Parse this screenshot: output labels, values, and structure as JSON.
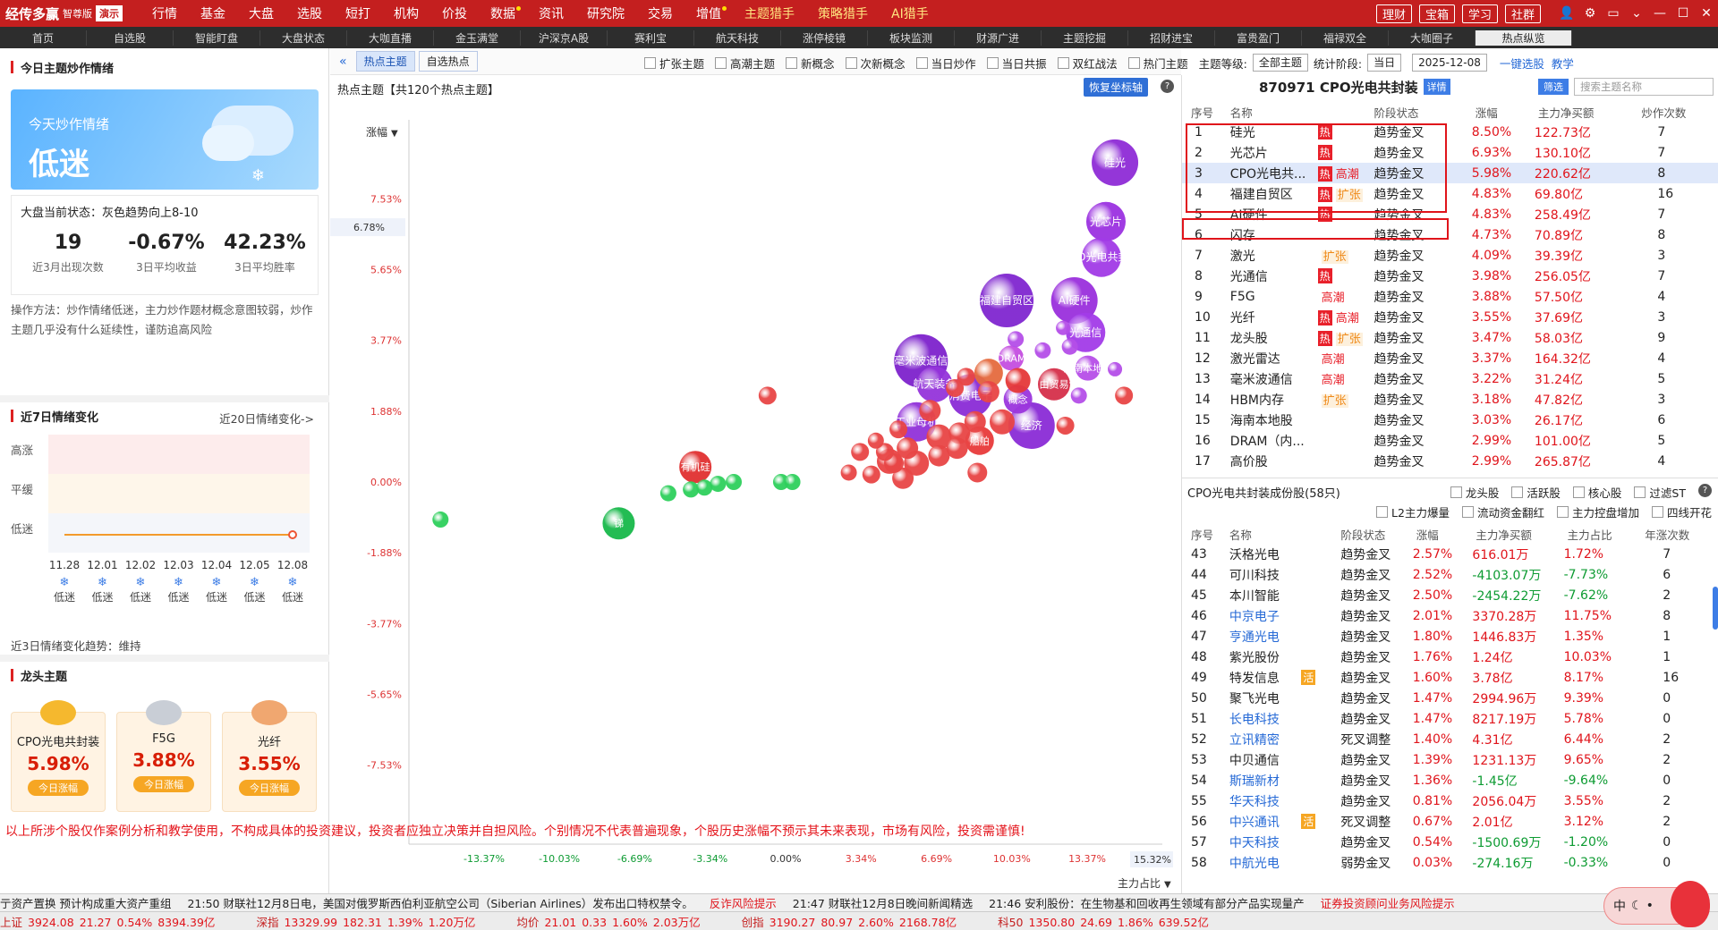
{
  "app": {
    "name": "经传多赢",
    "edition": "智尊版",
    "demo": "演示"
  },
  "menu": [
    "行情",
    "基金",
    "大盘",
    "选股",
    "短打",
    "机构",
    "价投",
    "数据",
    "资讯",
    "研究院",
    "交易",
    "增值",
    "主题猎手",
    "策略猎手",
    "AI猎手"
  ],
  "menu_dots": [
    "数据",
    "增值"
  ],
  "menu_highlight": [
    "主题猎手",
    "策略猎手",
    "AI猎手"
  ],
  "top_right": [
    "理财",
    "宝箱",
    "学习",
    "社群"
  ],
  "tabs": [
    "首页",
    "自选股",
    "智能盯盘",
    "大盘状态",
    "大咖直播",
    "金玉满堂",
    "沪深京A股",
    "赛利宝",
    "航天科技",
    "涨停棱镜",
    "板块监测",
    "财源广进",
    "主题挖掘",
    "招财进宝",
    "富贵盈门",
    "福禄双全",
    "大咖圈子",
    "热点纵览"
  ],
  "active_tab": "热点纵览",
  "left": {
    "mood_title": "今日主题炒作情绪",
    "card_line1": "今天炒作情绪",
    "card_line2": "低迷",
    "state": "大盘当前状态：灰色趋势向上8-10",
    "stats": [
      {
        "value": "19",
        "label": "近3月出现次数"
      },
      {
        "value": "-0.67%",
        "label": "3日平均收益"
      },
      {
        "value": "42.23%",
        "label": "3日平均胜率"
      }
    ],
    "op_text": "操作方法：炒作情绪低迷，主力炒作题材概念意图较弱，炒作主题几乎没有什么延续性，谨防追高风险",
    "week_title": "近7日情绪变化",
    "week_link": "近20日情绪变化->",
    "week_levels": [
      "高涨",
      "平缓",
      "低迷"
    ],
    "week_dates": [
      "11.28",
      "12.01",
      "12.02",
      "12.03",
      "12.04",
      "12.05",
      "12.08"
    ],
    "week_moods": [
      "低迷",
      "低迷",
      "低迷",
      "低迷",
      "低迷",
      "低迷",
      "低迷"
    ],
    "trend3": "近3日情绪变化趋势：维持",
    "lead_title": "龙头主题",
    "leaders": [
      {
        "name": "CPO光电共封装",
        "pct": "5.98%",
        "tag": "今日涨幅",
        "medal": "#f5b82e"
      },
      {
        "name": "F5G",
        "pct": "3.88%",
        "tag": "今日涨幅",
        "medal": "#c9ced6"
      },
      {
        "name": "光纤",
        "pct": "3.55%",
        "tag": "今日涨幅",
        "medal": "#f0a770"
      }
    ]
  },
  "disclaimer": "以上所涉个股仅作案例分析和教学使用，不构成具体的投资建议，投资者应独立决策并自担风险。个别情况不代表普遍现象，个股历史涨幅不预示其未来表现，市场有风险，投资需谨慎!",
  "mid": {
    "tab1": "热点主题",
    "tab2": "自选热点",
    "chart_title": "热点主题【共120个热点主题】",
    "restore": "恢复坐标轴",
    "help": "?",
    "y_selector": "涨幅",
    "x_selector": "主力占比",
    "y_pointer": "6.78%",
    "x_pointer": "15.32%"
  },
  "filters": {
    "checks": [
      "扩张主题",
      "高潮主题",
      "新概念",
      "次新概念",
      "当日炒作",
      "当日共振",
      "双红战法",
      "热门主题"
    ],
    "grade_label": "主题等级:",
    "grade": "全部主题",
    "period_label": "统计阶段:",
    "period": "当日",
    "date": "2025-12-08",
    "link1": "一键选股",
    "link2": "教学"
  },
  "chart_data": {
    "type": "scatter",
    "xlabel": "主力占比",
    "ylabel": "涨幅",
    "xticks": [
      "-13.37%",
      "-10.03%",
      "-6.69%",
      "-3.34%",
      "0.00%",
      "3.34%",
      "6.69%",
      "10.03%",
      "13.37%"
    ],
    "yticks": [
      "7.53%",
      "5.65%",
      "3.77%",
      "1.88%",
      "0.00%",
      "-1.88%",
      "-3.77%",
      "-5.65%",
      "-7.53%"
    ],
    "xlim": [
      -16.7,
      16.7
    ],
    "ylim": [
      -9.4,
      9.4
    ],
    "points": [
      {
        "label": "硅光",
        "x": 14.6,
        "y": 8.5,
        "s": 26,
        "c": "#8e2bd6"
      },
      {
        "label": "光芯片",
        "x": 14.2,
        "y": 6.93,
        "s": 22,
        "c": "#9b31e0"
      },
      {
        "label": "CPO光电共封装",
        "x": 14.0,
        "y": 5.98,
        "s": 22,
        "c": "#a13ae6"
      },
      {
        "label": "AI硬件",
        "x": 12.8,
        "y": 4.83,
        "s": 26,
        "c": "#9a2fdc"
      },
      {
        "label": "福建自贸区",
        "x": 9.8,
        "y": 4.83,
        "s": 30,
        "c": "#8026cf"
      },
      {
        "label": "光通信",
        "x": 13.3,
        "y": 3.98,
        "s": 22,
        "c": "#a23be8"
      },
      {
        "label": "海南本地股",
        "x": 13.4,
        "y": 3.03,
        "s": 14,
        "c": "#b64ee8"
      },
      {
        "label": "毫米波通信",
        "x": 6.0,
        "y": 3.22,
        "s": 30,
        "c": "#7d22cc"
      },
      {
        "label": "DRAM",
        "x": 10.0,
        "y": 3.3,
        "s": 14,
        "c": "#c44ee0"
      },
      {
        "label": "",
        "x": 10.2,
        "y": 3.8,
        "s": 9,
        "c": "#b44ee8"
      },
      {
        "label": "",
        "x": 11.4,
        "y": 3.5,
        "s": 9,
        "c": "#b44ee8"
      },
      {
        "label": "",
        "x": 12.6,
        "y": 3.6,
        "s": 9,
        "c": "#b44ee8"
      },
      {
        "label": "",
        "x": 12.3,
        "y": 4.1,
        "s": 8,
        "c": "#b44ee8"
      },
      {
        "label": "",
        "x": 14.6,
        "y": 3.0,
        "s": 8,
        "c": "#b44ee8"
      },
      {
        "label": "",
        "x": 13.0,
        "y": 2.3,
        "s": 9,
        "c": "#b44ee8"
      },
      {
        "label": "自由贸易港",
        "x": 11.9,
        "y": 2.6,
        "s": 18,
        "c": "#d5304a"
      },
      {
        "label": "",
        "x": 9.0,
        "y": 2.9,
        "s": 16,
        "c": "#e56a3e"
      },
      {
        "label": "消费电子",
        "x": 8.2,
        "y": 2.3,
        "s": 24,
        "c": "#8a2bd6"
      },
      {
        "label": "航天装备",
        "x": 6.6,
        "y": 2.6,
        "s": 20,
        "c": "#9433da"
      },
      {
        "label": "",
        "x": 10.3,
        "y": 2.7,
        "s": 14,
        "c": "#e53838"
      },
      {
        "label": "概念",
        "x": 10.3,
        "y": 2.2,
        "s": 16,
        "c": "#9b35dd"
      },
      {
        "label": "",
        "x": 9.0,
        "y": 2.4,
        "s": 12,
        "c": "#e84545"
      },
      {
        "label": "",
        "x": 7.5,
        "y": 2.5,
        "s": 10,
        "c": "#e84545"
      },
      {
        "label": "",
        "x": 8.4,
        "y": 1.6,
        "s": 12,
        "c": "#e84545"
      },
      {
        "label": "",
        "x": 7.7,
        "y": 1.3,
        "s": 12,
        "c": "#e84545"
      },
      {
        "label": "工业母机",
        "x": 5.8,
        "y": 1.6,
        "s": 22,
        "c": "#9131d9"
      },
      {
        "label": "经济",
        "x": 10.9,
        "y": 1.5,
        "s": 26,
        "c": "#8a2bd6"
      },
      {
        "label": "",
        "x": 12.4,
        "y": 1.5,
        "s": 10,
        "c": "#e84545"
      },
      {
        "label": "船舶",
        "x": 8.6,
        "y": 1.1,
        "s": 16,
        "c": "#e83a3a"
      },
      {
        "label": "",
        "x": 6.8,
        "y": 1.2,
        "s": 14,
        "c": "#e84545"
      },
      {
        "label": "",
        "x": 5.4,
        "y": 0.9,
        "s": 12,
        "c": "#e84545"
      },
      {
        "label": "",
        "x": 4.4,
        "y": 0.8,
        "s": 10,
        "c": "#e84545"
      },
      {
        "label": "",
        "x": 3.3,
        "y": 0.8,
        "s": 10,
        "c": "#e84545"
      },
      {
        "label": "",
        "x": 4.6,
        "y": 0.55,
        "s": 14,
        "c": "#e84545"
      },
      {
        "label": "",
        "x": 5.8,
        "y": 0.5,
        "s": 14,
        "c": "#e84545"
      },
      {
        "label": "",
        "x": 6.8,
        "y": 0.7,
        "s": 12,
        "c": "#e84545"
      },
      {
        "label": "",
        "x": 7.6,
        "y": 0.9,
        "s": 12,
        "c": "#e84545"
      },
      {
        "label": "",
        "x": 3.8,
        "y": 0.2,
        "s": 10,
        "c": "#e84545"
      },
      {
        "label": "",
        "x": 2.8,
        "y": 0.25,
        "s": 9,
        "c": "#e84545"
      },
      {
        "label": "",
        "x": 5.2,
        "y": 0.1,
        "s": 12,
        "c": "#e84545"
      },
      {
        "label": "",
        "x": 8.5,
        "y": 0.25,
        "s": 11,
        "c": "#e84545"
      },
      {
        "label": "",
        "x": 4.8,
        "y": 0.5,
        "s": 11,
        "c": "#e84545"
      },
      {
        "label": "",
        "x": 15.0,
        "y": 2.3,
        "s": 10,
        "c": "#e84545"
      },
      {
        "label": "",
        "x": 9.6,
        "y": 1.6,
        "s": 14,
        "c": "#e84545"
      },
      {
        "label": "",
        "x": 6.4,
        "y": 1.9,
        "s": 12,
        "c": "#e84545"
      },
      {
        "label": "",
        "x": 5.0,
        "y": 1.4,
        "s": 10,
        "c": "#e84545"
      },
      {
        "label": "",
        "x": 4.0,
        "y": 1.1,
        "s": 9,
        "c": "#e84545"
      },
      {
        "label": "",
        "x": 8.0,
        "y": 2.8,
        "s": 10,
        "c": "#e84545"
      },
      {
        "label": "有机硅",
        "x": -4.0,
        "y": 0.4,
        "s": 18,
        "c": "#e03030"
      },
      {
        "label": "",
        "x": -0.8,
        "y": 2.3,
        "s": 10,
        "c": "#e84545"
      },
      {
        "label": "",
        "x": -5.2,
        "y": -0.3,
        "s": 9,
        "c": "#2ecf5c"
      },
      {
        "label": "",
        "x": -4.2,
        "y": -0.2,
        "s": 9,
        "c": "#2ecf5c"
      },
      {
        "label": "",
        "x": -3.6,
        "y": -0.15,
        "s": 9,
        "c": "#2ecf5c"
      },
      {
        "label": "",
        "x": -3.0,
        "y": -0.05,
        "s": 9,
        "c": "#2ecf5c"
      },
      {
        "label": "",
        "x": -2.3,
        "y": 0.0,
        "s": 9,
        "c": "#2ecf5c"
      },
      {
        "label": "",
        "x": -0.2,
        "y": 0.0,
        "s": 9,
        "c": "#2ecf5c"
      },
      {
        "label": "",
        "x": 0.3,
        "y": 0.0,
        "s": 9,
        "c": "#2ecf5c"
      },
      {
        "label": "锑",
        "x": -7.4,
        "y": -1.1,
        "s": 18,
        "c": "#17b84a"
      },
      {
        "label": "",
        "x": -15.3,
        "y": -1.0,
        "s": 9,
        "c": "#2ecf5c"
      }
    ]
  },
  "right": {
    "title": "870971 CPO光电共封装",
    "detail": "详情",
    "screen": "筛选",
    "search_placeholder": "搜索主题名称",
    "theme_headers": [
      "序号",
      "名称",
      "",
      "阶段状态",
      "涨幅",
      "主力净买额",
      "炒作次数"
    ],
    "themes": [
      {
        "no": "1",
        "name": "硅光",
        "tag1": "热",
        "tag2": "",
        "state": "趋势金叉",
        "pct": "8.50%",
        "amt": "122.73亿",
        "cnt": "7"
      },
      {
        "no": "2",
        "name": "光芯片",
        "tag1": "热",
        "tag2": "",
        "state": "趋势金叉",
        "pct": "6.93%",
        "amt": "130.10亿",
        "cnt": "7"
      },
      {
        "no": "3",
        "name": "CPO光电共...",
        "tag1": "热",
        "tag2": "高潮",
        "state": "趋势金叉",
        "pct": "5.98%",
        "amt": "220.62亿",
        "cnt": "8"
      },
      {
        "no": "4",
        "name": "福建自贸区",
        "tag1": "热",
        "tag2": "扩张",
        "state": "趋势金叉",
        "pct": "4.83%",
        "amt": "69.80亿",
        "cnt": "16"
      },
      {
        "no": "5",
        "name": "AI硬件",
        "tag1": "热",
        "tag2": "",
        "state": "趋势金叉",
        "pct": "4.83%",
        "amt": "258.49亿",
        "cnt": "7"
      },
      {
        "no": "6",
        "name": "闪存",
        "tag1": "",
        "tag2": "",
        "state": "趋势金叉",
        "pct": "4.73%",
        "amt": "70.89亿",
        "cnt": "8"
      },
      {
        "no": "7",
        "name": "激光",
        "tag1": "",
        "tag2": "扩张",
        "state": "趋势金叉",
        "pct": "4.09%",
        "amt": "39.39亿",
        "cnt": "3"
      },
      {
        "no": "8",
        "name": "光通信",
        "tag1": "热",
        "tag2": "",
        "state": "趋势金叉",
        "pct": "3.98%",
        "amt": "256.05亿",
        "cnt": "7"
      },
      {
        "no": "9",
        "name": "F5G",
        "tag1": "",
        "tag2": "高潮",
        "state": "趋势金叉",
        "pct": "3.88%",
        "amt": "57.50亿",
        "cnt": "4"
      },
      {
        "no": "10",
        "name": "光纤",
        "tag1": "热",
        "tag2": "高潮",
        "state": "趋势金叉",
        "pct": "3.55%",
        "amt": "37.69亿",
        "cnt": "3"
      },
      {
        "no": "11",
        "name": "龙头股",
        "tag1": "热",
        "tag2": "扩张",
        "state": "趋势金叉",
        "pct": "3.47%",
        "amt": "58.03亿",
        "cnt": "9"
      },
      {
        "no": "12",
        "name": "激光雷达",
        "tag1": "",
        "tag2": "高潮",
        "state": "趋势金叉",
        "pct": "3.37%",
        "amt": "164.32亿",
        "cnt": "4"
      },
      {
        "no": "13",
        "name": "毫米波通信",
        "tag1": "",
        "tag2": "高潮",
        "state": "趋势金叉",
        "pct": "3.22%",
        "amt": "31.24亿",
        "cnt": "5"
      },
      {
        "no": "14",
        "name": "HBM内存",
        "tag1": "",
        "tag2": "扩张",
        "state": "趋势金叉",
        "pct": "3.18%",
        "amt": "47.82亿",
        "cnt": "3"
      },
      {
        "no": "15",
        "name": "海南本地股",
        "tag1": "",
        "tag2": "",
        "state": "趋势金叉",
        "pct": "3.03%",
        "amt": "26.17亿",
        "cnt": "6"
      },
      {
        "no": "16",
        "name": "DRAM（内...",
        "tag1": "",
        "tag2": "",
        "state": "趋势金叉",
        "pct": "2.99%",
        "amt": "101.00亿",
        "cnt": "5"
      },
      {
        "no": "17",
        "name": "高价股",
        "tag1": "",
        "tag2": "",
        "state": "趋势金叉",
        "pct": "2.99%",
        "amt": "265.87亿",
        "cnt": "4"
      }
    ],
    "sub_title": "CPO光电共封装成份股(58只)",
    "sub_checks1": [
      "龙头股",
      "活跃股",
      "核心股",
      "过滤ST"
    ],
    "sub_checks2": [
      "L2主力爆量",
      "流动资金翻红",
      "主力控盘增加",
      "四线开花"
    ],
    "stock_headers": [
      "序号",
      "名称",
      "",
      "阶段状态",
      "涨幅",
      "主力净买额",
      "主力占比",
      "年涨次数"
    ],
    "stocks": [
      {
        "no": "43",
        "name": "沃格光电",
        "blue": false,
        "tag": "",
        "state": "趋势金叉",
        "pct": "2.57%",
        "amt": "616.01万",
        "ratio": "1.72%",
        "cnt": "7"
      },
      {
        "no": "44",
        "name": "可川科技",
        "blue": false,
        "tag": "",
        "state": "趋势金叉",
        "pct": "2.52%",
        "amt": "-4103.07万",
        "ratio": "-7.73%",
        "cnt": "6"
      },
      {
        "no": "45",
        "name": "本川智能",
        "blue": false,
        "tag": "",
        "state": "趋势金叉",
        "pct": "2.50%",
        "amt": "-2454.22万",
        "ratio": "-7.62%",
        "cnt": "2"
      },
      {
        "no": "46",
        "name": "中京电子",
        "blue": true,
        "tag": "",
        "state": "趋势金叉",
        "pct": "2.01%",
        "amt": "3370.28万",
        "ratio": "11.75%",
        "cnt": "8"
      },
      {
        "no": "47",
        "name": "亨通光电",
        "blue": true,
        "tag": "",
        "state": "趋势金叉",
        "pct": "1.80%",
        "amt": "1446.83万",
        "ratio": "1.35%",
        "cnt": "1"
      },
      {
        "no": "48",
        "name": "紫光股份",
        "blue": false,
        "tag": "",
        "state": "趋势金叉",
        "pct": "1.76%",
        "amt": "1.24亿",
        "ratio": "10.03%",
        "cnt": "1"
      },
      {
        "no": "49",
        "name": "特发信息",
        "blue": false,
        "tag": "活",
        "state": "趋势金叉",
        "pct": "1.60%",
        "amt": "3.78亿",
        "ratio": "8.17%",
        "cnt": "16"
      },
      {
        "no": "50",
        "name": "聚飞光电",
        "blue": false,
        "tag": "",
        "state": "趋势金叉",
        "pct": "1.47%",
        "amt": "2994.96万",
        "ratio": "9.39%",
        "cnt": "0"
      },
      {
        "no": "51",
        "name": "长电科技",
        "blue": true,
        "tag": "",
        "state": "趋势金叉",
        "pct": "1.47%",
        "amt": "8217.19万",
        "ratio": "5.78%",
        "cnt": "0"
      },
      {
        "no": "52",
        "name": "立讯精密",
        "blue": true,
        "tag": "",
        "state": "死叉调整",
        "pct": "1.40%",
        "amt": "4.31亿",
        "ratio": "6.44%",
        "cnt": "2"
      },
      {
        "no": "53",
        "name": "中贝通信",
        "blue": false,
        "tag": "",
        "state": "趋势金叉",
        "pct": "1.39%",
        "amt": "1231.13万",
        "ratio": "9.65%",
        "cnt": "2"
      },
      {
        "no": "54",
        "name": "斯瑞新材",
        "blue": true,
        "tag": "",
        "state": "趋势金叉",
        "pct": "1.36%",
        "amt": "-1.45亿",
        "ratio": "-9.64%",
        "cnt": "0"
      },
      {
        "no": "55",
        "name": "华天科技",
        "blue": true,
        "tag": "",
        "state": "趋势金叉",
        "pct": "0.81%",
        "amt": "2056.04万",
        "ratio": "3.55%",
        "cnt": "2"
      },
      {
        "no": "56",
        "name": "中兴通讯",
        "blue": true,
        "tag": "活",
        "state": "死叉调整",
        "pct": "0.67%",
        "amt": "2.01亿",
        "ratio": "3.12%",
        "cnt": "2"
      },
      {
        "no": "57",
        "name": "中天科技",
        "blue": true,
        "tag": "",
        "state": "趋势金叉",
        "pct": "0.54%",
        "amt": "-1500.69万",
        "ratio": "-1.20%",
        "cnt": "0"
      },
      {
        "no": "58",
        "name": "中航光电",
        "blue": true,
        "tag": "",
        "state": "弱势金叉",
        "pct": "0.03%",
        "amt": "-274.16万",
        "ratio": "-0.33%",
        "cnt": "0"
      }
    ]
  },
  "news": [
    {
      "t": "亍资产置换 预计构成重大资产重组",
      "red": false
    },
    {
      "t": "21:50 财联社12月8日电，美国对俄罗斯西伯利亚航空公司（Siberian Airlines）发布出口特权禁令。",
      "red": false
    },
    {
      "t": "反诈风险提示",
      "red": true
    },
    {
      "t": "21:47 财联社12月8日晚间新闻精选",
      "red": false
    },
    {
      "t": "21:46 安利股份：在生物基和回收再生领域有部分产品实现量产",
      "red": false
    },
    {
      "t": "证券投资顾问业务风险提示",
      "red": true
    }
  ],
  "indices": [
    {
      "name": "上证",
      "v": "3924.08",
      "chg": "21.27",
      "pct": "0.54%",
      "amt": "8394.39亿"
    },
    {
      "name": "深指",
      "v": "13329.99",
      "chg": "182.31",
      "pct": "1.39%",
      "amt": "1.20万亿"
    },
    {
      "name": "均价",
      "v": "21.01",
      "chg": "0.33",
      "pct": "1.60%",
      "amt": "2.03万亿"
    },
    {
      "name": "创指",
      "v": "3190.27",
      "chg": "80.97",
      "pct": "2.60%",
      "amt": "2168.78亿"
    },
    {
      "name": "科50",
      "v": "1350.80",
      "chg": "24.69",
      "pct": "1.86%",
      "amt": "639.52亿"
    }
  ],
  "float_text": "中"
}
